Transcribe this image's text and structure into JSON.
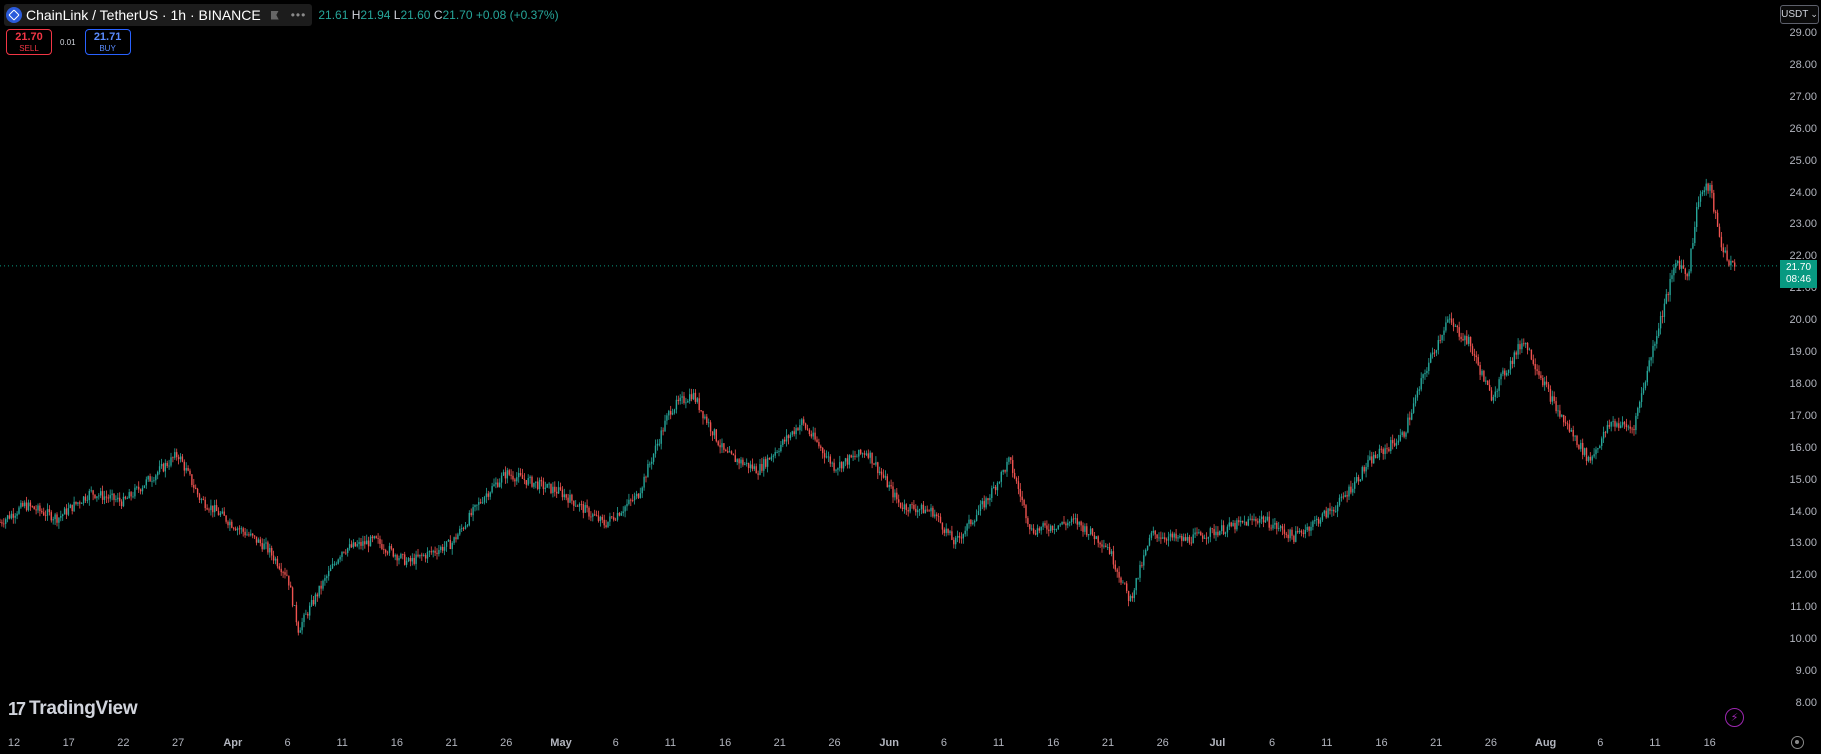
{
  "header": {
    "symbol_title": "ChainLink / TetherUS · 1h · BINANCE",
    "ohlc_open_fragment": "21.61",
    "ohlc_high_label": "H",
    "ohlc_high": "21.94",
    "ohlc_low_label": "L",
    "ohlc_low": "21.60",
    "ohlc_close_label": "C",
    "ohlc_close": "21.70",
    "ohlc_change": "+0.08 (+0.37%)"
  },
  "trade": {
    "sell_price": "21.70",
    "sell_label": "SELL",
    "spread": "0.01",
    "buy_price": "21.71",
    "buy_label": "BUY"
  },
  "axis": {
    "currency": "USDT",
    "currency_chevron": "⌄",
    "current_price": "21.70",
    "countdown": "08:46"
  },
  "branding": {
    "logo_mark": "17",
    "logo_text": "TradingView",
    "flash_glyph": "⚡"
  },
  "colors": {
    "up": "#26a69a",
    "down": "#ef5350",
    "price_tag": "#089981",
    "sell": "#f23645",
    "buy": "#2962ff"
  },
  "chart_data": {
    "type": "candlestick",
    "y_axis_labels": [
      "29.00",
      "28.00",
      "27.00",
      "26.00",
      "25.00",
      "24.00",
      "23.00",
      "22.00",
      "21.00",
      "20.00",
      "19.00",
      "18.00",
      "17.00",
      "16.00",
      "15.00",
      "14.00",
      "13.00",
      "12.00",
      "11.00",
      "10.00",
      "9.00",
      "8.00"
    ],
    "x_axis_labels": [
      "12",
      "17",
      "22",
      "27",
      "Apr",
      "6",
      "11",
      "16",
      "21",
      "26",
      "May",
      "6",
      "11",
      "16",
      "21",
      "26",
      "Jun",
      "6",
      "11",
      "16",
      "21",
      "26",
      "Jul",
      "6",
      "11",
      "16",
      "21",
      "26",
      "Aug",
      "6",
      "11",
      "16"
    ],
    "ylim": [
      7.5,
      29.6
    ],
    "last_price": 21.7,
    "price_path": [
      [
        "Mar 10",
        13.5
      ],
      [
        "Mar 13",
        14.2
      ],
      [
        "Mar 16",
        13.8
      ],
      [
        "Mar 19",
        14.6
      ],
      [
        "Mar 22",
        14.3
      ],
      [
        "Mar 25",
        15.2
      ],
      [
        "Mar 27",
        15.8
      ],
      [
        "Mar 29",
        14.4
      ],
      [
        "Apr 1",
        13.6
      ],
      [
        "Apr 4",
        12.9
      ],
      [
        "Apr 6",
        12.0
      ],
      [
        "Apr 7",
        10.3
      ],
      [
        "Apr 9",
        11.6
      ],
      [
        "Apr 11",
        12.8
      ],
      [
        "Apr 14",
        13.1
      ],
      [
        "Apr 17",
        12.4
      ],
      [
        "Apr 21",
        13.0
      ],
      [
        "Apr 24",
        14.5
      ],
      [
        "Apr 26",
        15.2
      ],
      [
        "May 1",
        14.6
      ],
      [
        "May 5",
        13.6
      ],
      [
        "May 8",
        14.5
      ],
      [
        "May 11",
        17.2
      ],
      [
        "May 13",
        17.7
      ],
      [
        "May 16",
        15.8
      ],
      [
        "May 19",
        15.3
      ],
      [
        "May 23",
        16.8
      ],
      [
        "May 26",
        15.4
      ],
      [
        "May 29",
        15.9
      ],
      [
        "Jun 1",
        14.2
      ],
      [
        "Jun 4",
        14.0
      ],
      [
        "Jun 6",
        13.0
      ],
      [
        "Jun 9",
        14.4
      ],
      [
        "Jun 11",
        15.6
      ],
      [
        "Jun 13",
        13.4
      ],
      [
        "Jun 17",
        13.7
      ],
      [
        "Jun 20",
        12.9
      ],
      [
        "Jun 22",
        11.2
      ],
      [
        "Jun 24",
        13.3
      ],
      [
        "Jun 27",
        13.1
      ],
      [
        "Jul 1",
        13.5
      ],
      [
        "Jul 4",
        13.8
      ],
      [
        "Jul 7",
        13.2
      ],
      [
        "Jul 11",
        14.2
      ],
      [
        "Jul 14",
        15.6
      ],
      [
        "Jul 17",
        16.4
      ],
      [
        "Jul 19",
        18.4
      ],
      [
        "Jul 21",
        20.0
      ],
      [
        "Jul 23",
        19.3
      ],
      [
        "Jul 25",
        17.6
      ],
      [
        "Jul 28",
        19.4
      ],
      [
        "Jul 31",
        17.2
      ],
      [
        "Aug 3",
        15.6
      ],
      [
        "Aug 5",
        16.8
      ],
      [
        "Aug 7",
        16.6
      ],
      [
        "Aug 9",
        19.4
      ],
      [
        "Aug 11",
        21.9
      ],
      [
        "Aug 12",
        21.4
      ],
      [
        "Aug 13",
        23.9
      ],
      [
        "Aug 14",
        24.2
      ],
      [
        "Aug 15",
        22.4
      ],
      [
        "Aug 16",
        21.7
      ]
    ]
  }
}
